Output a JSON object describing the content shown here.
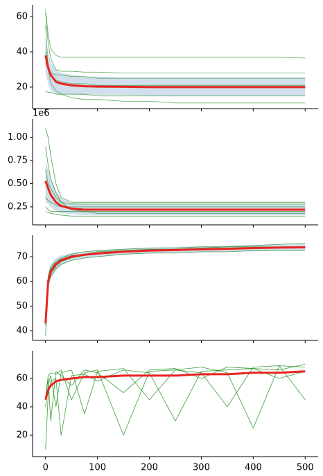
{
  "chart_data": [
    {
      "type": "line",
      "xlim": [
        -25,
        525
      ],
      "ylim": [
        7.8,
        66.7
      ],
      "xticks": [
        0,
        100,
        200,
        300,
        400,
        500
      ],
      "yticks": [
        20,
        40,
        60
      ],
      "xticklabels": false,
      "x": [
        0,
        5,
        10,
        20,
        30,
        50,
        75,
        100,
        150,
        200,
        250,
        300,
        350,
        400,
        450,
        500
      ],
      "band": {
        "color": "#c6d7e8",
        "lower": [
          28,
          22,
          18,
          16,
          16,
          16,
          15.5,
          15.5,
          15.5,
          15,
          15,
          15,
          15,
          15,
          15,
          15
        ],
        "upper": [
          48,
          40,
          34,
          30,
          28,
          27,
          26,
          26,
          25.5,
          25.5,
          25.5,
          25.5,
          25.5,
          25.5,
          25.5,
          25.5
        ]
      },
      "series": [
        {
          "color": "#3a9a3a",
          "values": [
            64,
            50,
            42,
            38,
            37,
            37,
            37,
            37,
            37,
            37,
            37,
            37,
            37,
            37,
            37,
            36.5
          ]
        },
        {
          "color": "#3a9a3a",
          "values": [
            62,
            45,
            36,
            30,
            29,
            29,
            28.5,
            28.5,
            28,
            28,
            28,
            28,
            28,
            28,
            28,
            28
          ]
        },
        {
          "color": "#3a9a3a",
          "values": [
            34,
            30,
            26,
            24,
            23,
            22,
            22,
            21,
            21,
            21,
            21,
            21,
            21,
            21,
            21,
            21
          ]
        },
        {
          "color": "#3a9a3a",
          "values": [
            18,
            17,
            17,
            16,
            16,
            16,
            16,
            15,
            15,
            15,
            15,
            15,
            15,
            15,
            15,
            15
          ]
        },
        {
          "color": "#3a9a3a",
          "values": [
            55,
            30,
            22,
            18,
            16,
            14,
            13,
            13,
            12,
            12,
            11,
            11,
            11,
            11,
            11,
            11
          ]
        },
        {
          "color": "#3a9a3a",
          "values": [
            40,
            32,
            28,
            27,
            27,
            26,
            26,
            25,
            25,
            25,
            25,
            25,
            25,
            25,
            25,
            25
          ]
        },
        {
          "color": "#e8231f",
          "width": 3,
          "values": [
            38,
            31,
            27,
            23,
            22,
            21,
            20.5,
            20.3,
            20.2,
            20,
            20,
            20,
            20,
            20,
            20,
            20
          ]
        }
      ]
    },
    {
      "type": "line",
      "xlim": [
        -25,
        525
      ],
      "ylim": [
        0.055,
        1.2
      ],
      "offset_text": "1e6",
      "xticks": [
        0,
        100,
        200,
        300,
        400,
        500
      ],
      "xticklabels": false,
      "yticks": [
        0.25,
        {
          "value": 0.5,
          "label": "0.50"
        },
        0.75,
        {
          "value": 1,
          "label": "1.00"
        }
      ],
      "x": [
        0,
        5,
        10,
        20,
        30,
        50,
        75,
        100,
        150,
        200,
        250,
        300,
        350,
        400,
        450,
        500
      ],
      "band": {
        "color": "#c6d7e8",
        "lower": [
          0.3,
          0.28,
          0.25,
          0.2,
          0.18,
          0.17,
          0.16,
          0.16,
          0.16,
          0.16,
          0.16,
          0.16,
          0.16,
          0.16,
          0.16,
          0.16
        ],
        "upper": [
          0.75,
          0.65,
          0.55,
          0.42,
          0.34,
          0.29,
          0.28,
          0.28,
          0.28,
          0.28,
          0.28,
          0.28,
          0.28,
          0.28,
          0.28,
          0.28
        ]
      },
      "series": [
        {
          "color": "#2a8a2a",
          "values": [
            1.1,
            1.0,
            0.8,
            0.5,
            0.35,
            0.3,
            0.3,
            0.3,
            0.3,
            0.3,
            0.3,
            0.3,
            0.3,
            0.3,
            0.3,
            0.3
          ]
        },
        {
          "color": "#2a8a2a",
          "values": [
            0.65,
            0.5,
            0.45,
            0.35,
            0.3,
            0.28,
            0.28,
            0.28,
            0.28,
            0.28,
            0.28,
            0.28,
            0.28,
            0.28,
            0.28,
            0.28
          ]
        },
        {
          "color": "#2a8a2a",
          "values": [
            0.35,
            0.32,
            0.3,
            0.27,
            0.25,
            0.25,
            0.25,
            0.25,
            0.25,
            0.25,
            0.25,
            0.25,
            0.25,
            0.25,
            0.25,
            0.25
          ]
        },
        {
          "color": "#2a8a2a",
          "values": [
            0.25,
            0.22,
            0.2,
            0.2,
            0.2,
            0.2,
            0.2,
            0.2,
            0.2,
            0.2,
            0.2,
            0.2,
            0.2,
            0.2,
            0.2,
            0.2
          ]
        },
        {
          "color": "#2a8a2a",
          "values": [
            0.2,
            0.19,
            0.18,
            0.17,
            0.16,
            0.15,
            0.15,
            0.15,
            0.15,
            0.15,
            0.15,
            0.15,
            0.15,
            0.15,
            0.15,
            0.15
          ]
        },
        {
          "color": "#2a8a2a",
          "values": [
            0.9,
            0.7,
            0.55,
            0.4,
            0.3,
            0.22,
            0.2,
            0.18,
            0.18,
            0.18,
            0.18,
            0.18,
            0.18,
            0.18,
            0.18,
            0.18
          ]
        },
        {
          "color": "#e8231f",
          "width": 3,
          "values": [
            0.53,
            0.45,
            0.38,
            0.3,
            0.26,
            0.23,
            0.22,
            0.22,
            0.22,
            0.22,
            0.22,
            0.22,
            0.22,
            0.22,
            0.22,
            0.22
          ]
        }
      ]
    },
    {
      "type": "line",
      "xlim": [
        -25,
        525
      ],
      "ylim": [
        36.1,
        78.7
      ],
      "xticks": [
        0,
        100,
        200,
        300,
        400,
        500
      ],
      "yticks": [
        40,
        50,
        60,
        70
      ],
      "xticklabels": false,
      "x": [
        0,
        5,
        10,
        20,
        30,
        50,
        75,
        100,
        150,
        200,
        250,
        300,
        350,
        400,
        450,
        500
      ],
      "band": {
        "color": "#c6d7e8",
        "lower": [
          40,
          57,
          61,
          64.5,
          66.5,
          68.5,
          69.5,
          70,
          70.8,
          71.3,
          71.5,
          71.8,
          72,
          72.2,
          72.5,
          72.5
        ],
        "upper": [
          46,
          63,
          67,
          69.5,
          70.5,
          71.5,
          72,
          72.6,
          73.2,
          73.7,
          74,
          74.2,
          74.5,
          74.8,
          75,
          75.1
        ]
      },
      "series": [
        {
          "color": "#2a8a2a",
          "values": [
            38,
            58,
            63,
            66,
            68,
            69.5,
            70.5,
            71,
            72,
            72.5,
            73,
            73.5,
            74,
            74.5,
            75,
            75.5
          ]
        },
        {
          "color": "#2a8a2a",
          "values": [
            45,
            62,
            66,
            68,
            69.5,
            71,
            72,
            72.5,
            73,
            73.5,
            73.5,
            74,
            74,
            74,
            74,
            74
          ]
        },
        {
          "color": "#2a8a2a",
          "values": [
            42,
            59,
            62,
            65,
            67,
            68.5,
            69.5,
            70,
            71,
            71.5,
            71.5,
            72,
            72,
            72.5,
            72.5,
            72.5
          ]
        },
        {
          "color": "#2a8a2a",
          "values": [
            44,
            61,
            65,
            68,
            69,
            70.5,
            71,
            72,
            72.5,
            73,
            73,
            73,
            73.5,
            73.5,
            74,
            74
          ]
        },
        {
          "color": "#e8231f",
          "width": 3,
          "values": [
            43,
            60,
            64,
            67,
            68.5,
            70,
            70.8,
            71.3,
            72,
            72.5,
            72.7,
            73,
            73.2,
            73.5,
            73.7,
            73.8
          ]
        }
      ]
    },
    {
      "type": "line",
      "xlim": [
        -25,
        525
      ],
      "ylim": [
        4.9,
        79.5
      ],
      "xticks": [
        0,
        100,
        200,
        300,
        400,
        500
      ],
      "yticks": [
        20,
        40,
        60
      ],
      "xticklabels": true,
      "x": [
        0,
        5,
        10,
        20,
        30,
        50,
        75,
        100,
        150,
        200,
        250,
        300,
        350,
        400,
        450,
        500
      ],
      "series": [
        {
          "color": "#138a13",
          "values": [
            47,
            60,
            30,
            65,
            62,
            55,
            66,
            64,
            50,
            66,
            67,
            60,
            68,
            67,
            66,
            70
          ]
        },
        {
          "color": "#138a13",
          "values": [
            40,
            55,
            62,
            40,
            64,
            66,
            35,
            65,
            67,
            45,
            66,
            68,
            64,
            25,
            69,
            68
          ]
        },
        {
          "color": "#138a13",
          "values": [
            10,
            48,
            58,
            60,
            20,
            62,
            63,
            58,
            66,
            64,
            30,
            65,
            66,
            67,
            60,
            65
          ]
        },
        {
          "color": "#138a13",
          "values": [
            45,
            62,
            64,
            63,
            66,
            45,
            64,
            66,
            20,
            65,
            66,
            64,
            40,
            68,
            69,
            45
          ]
        },
        {
          "color": "#e8231f",
          "width": 3,
          "values": [
            45,
            52,
            55,
            58,
            59,
            60,
            61,
            61,
            62,
            62,
            62,
            63,
            63,
            64,
            64,
            65
          ]
        }
      ]
    }
  ]
}
